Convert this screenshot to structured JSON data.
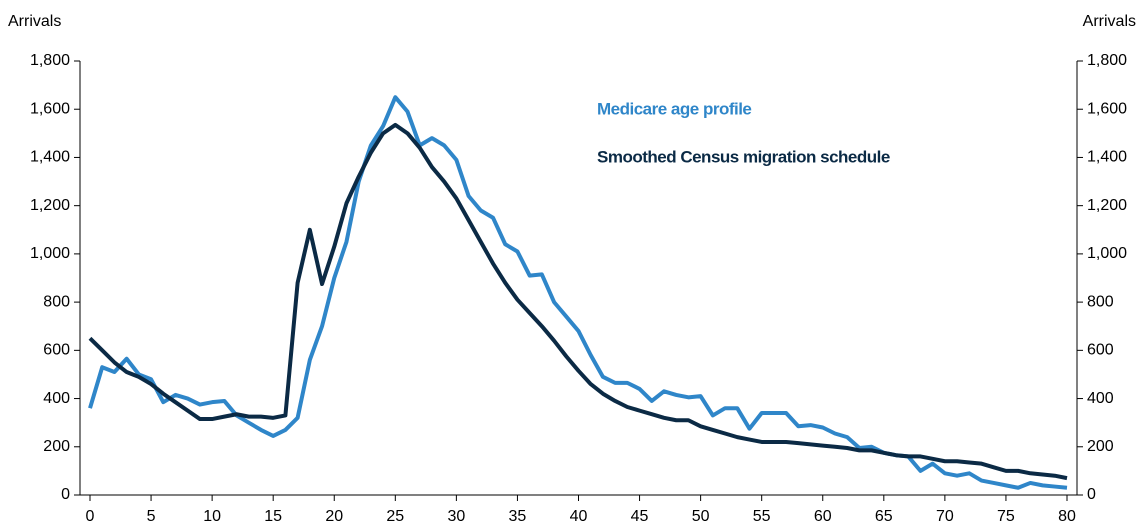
{
  "chart_data": {
    "type": "line",
    "ylabel": "Arrivals",
    "y2label": "Arrivals",
    "x": [
      0,
      1,
      2,
      3,
      4,
      5,
      6,
      7,
      8,
      9,
      10,
      11,
      12,
      13,
      14,
      15,
      16,
      17,
      18,
      19,
      20,
      21,
      22,
      23,
      24,
      25,
      26,
      27,
      28,
      29,
      30,
      31,
      32,
      33,
      34,
      35,
      36,
      37,
      38,
      39,
      40,
      41,
      42,
      43,
      44,
      45,
      46,
      47,
      48,
      49,
      50,
      51,
      52,
      53,
      54,
      55,
      56,
      57,
      58,
      59,
      60,
      61,
      62,
      63,
      64,
      65,
      66,
      67,
      68,
      69,
      70,
      71,
      72,
      73,
      74,
      75,
      76,
      77,
      78,
      79,
      80
    ],
    "xlim": [
      0,
      80
    ],
    "xticks": [
      0,
      5,
      10,
      15,
      20,
      25,
      30,
      35,
      40,
      45,
      50,
      55,
      60,
      65,
      70,
      75,
      80
    ],
    "ylim": [
      0,
      1800
    ],
    "yticks": [
      0,
      200,
      400,
      600,
      800,
      {
        "value": 1000,
        "label": "1,000"
      },
      {
        "value": 1200,
        "label": "1,200"
      },
      {
        "value": 1400,
        "label": "1,400"
      },
      {
        "value": 1600,
        "label": "1,600"
      },
      {
        "value": 1800,
        "label": "1,800"
      }
    ],
    "y2lim": [
      0,
      1800
    ],
    "y2ticks": [
      0,
      200,
      400,
      600,
      800,
      {
        "value": 1000,
        "label": "1,000"
      },
      {
        "value": 1200,
        "label": "1,200"
      },
      {
        "value": 1400,
        "label": "1,400"
      },
      {
        "value": 1600,
        "label": "1,600"
      },
      {
        "value": 1800,
        "label": "1,800"
      }
    ],
    "grid": false,
    "series": [
      {
        "name": "Medicare age profile",
        "color": "#2f86c9",
        "values": [
          360,
          530,
          510,
          565,
          500,
          480,
          385,
          415,
          400,
          375,
          385,
          390,
          330,
          300,
          270,
          245,
          270,
          320,
          560,
          700,
          900,
          1050,
          1300,
          1450,
          1530,
          1650,
          1590,
          1450,
          1480,
          1450,
          1390,
          1240,
          1180,
          1150,
          1040,
          1010,
          910,
          915,
          800,
          740,
          680,
          580,
          490,
          465,
          465,
          440,
          390,
          430,
          415,
          405,
          410,
          330,
          360,
          360,
          275,
          340,
          340,
          340,
          285,
          290,
          280,
          255,
          240,
          195,
          200,
          175,
          165,
          160,
          100,
          130,
          90,
          80,
          90,
          60,
          50,
          40,
          30,
          50,
          40,
          35,
          30
        ]
      },
      {
        "name": "Smoothed Census migration schedule",
        "color": "#0b2a45",
        "values": [
          650,
          600,
          550,
          510,
          490,
          460,
          420,
          385,
          350,
          315,
          315,
          325,
          335,
          325,
          325,
          320,
          330,
          880,
          1100,
          875,
          1030,
          1210,
          1320,
          1420,
          1500,
          1535,
          1500,
          1440,
          1360,
          1300,
          1230,
          1140,
          1050,
          960,
          880,
          810,
          755,
          700,
          640,
          575,
          515,
          460,
          420,
          390,
          365,
          350,
          335,
          320,
          310,
          310,
          285,
          270,
          255,
          240,
          230,
          220,
          220,
          220,
          215,
          210,
          205,
          200,
          195,
          185,
          185,
          175,
          165,
          160,
          160,
          150,
          140,
          140,
          135,
          130,
          115,
          100,
          100,
          90,
          85,
          80,
          70
        ]
      }
    ]
  }
}
